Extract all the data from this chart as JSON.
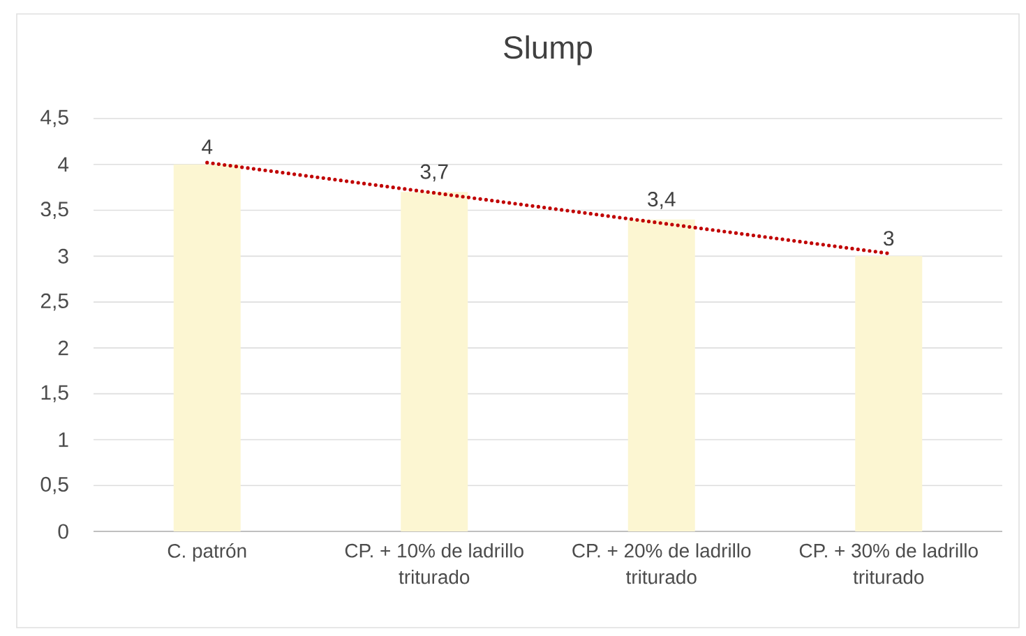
{
  "chart_data": {
    "type": "bar",
    "title": "Slump",
    "categories": [
      "C. patrón",
      "CP. + 10% de ladrillo triturado",
      "CP. + 20% de ladrillo triturado",
      "CP. + 30% de ladrillo triturado"
    ],
    "series": [
      {
        "color": "#fcf6d2",
        "values": [
          4,
          3.7,
          3.4,
          3
        ],
        "value_labels": [
          "4",
          "3,7",
          "3,4",
          "3"
        ]
      },
      {
        "type": "line",
        "color": "#c00000",
        "line_style": "dotted",
        "values": [
          4.02,
          3.69,
          3.36,
          3.03
        ]
      }
    ],
    "ylim": [
      0,
      4.5
    ],
    "yticks": [
      0,
      {
        "value": 0.5,
        "label": "0,5"
      },
      1,
      {
        "value": 1.5,
        "label": "1,5"
      },
      2,
      {
        "value": 2.5,
        "label": "2,5"
      },
      3,
      {
        "value": 3.5,
        "label": "3,5"
      },
      4,
      {
        "value": 4.5,
        "label": "4,5"
      }
    ],
    "grid": "y"
  }
}
